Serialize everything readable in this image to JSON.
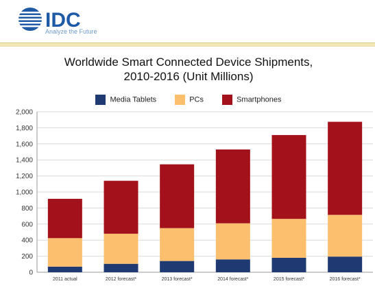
{
  "brand": {
    "name": "IDC",
    "tagline": "Analyze the Future",
    "colors": {
      "logo_blue": "#1f5aa6",
      "logo_light": "#6e99cf"
    }
  },
  "chart_data": {
    "type": "bar",
    "stacked": true,
    "title_line1": "Worldwide Smart Connected Device Shipments,",
    "title_line2": "2010-2016 (Unit Millions)",
    "categories": [
      "2011 actual",
      "2012 forecast*",
      "2013 forecast*",
      "2014 forecast*",
      "2015 forecast*",
      "2016 forecast*"
    ],
    "series": [
      {
        "name": "Media Tablets",
        "color": "#1f3a73",
        "values": [
          70,
          105,
          140,
          160,
          180,
          195
        ]
      },
      {
        "name": "PCs",
        "color": "#fbbf6e",
        "values": [
          355,
          375,
          410,
          450,
          485,
          520
        ]
      },
      {
        "name": "Smartphones",
        "color": "#a3121b",
        "values": [
          490,
          660,
          795,
          920,
          1045,
          1160
        ]
      }
    ],
    "ylim": [
      0,
      2000
    ],
    "yticks": [
      "0",
      "200",
      "400",
      "600",
      "800",
      "1,000",
      "1,200",
      "1,400",
      "1,600",
      "1,800",
      "2,000"
    ],
    "ytick_values": [
      0,
      200,
      400,
      600,
      800,
      1000,
      1200,
      1400,
      1600,
      1800,
      2000
    ],
    "grid": true,
    "legend_position": "top"
  }
}
